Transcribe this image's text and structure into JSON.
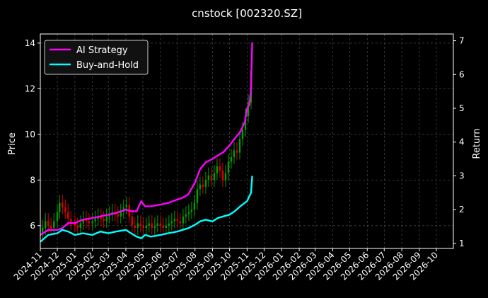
{
  "chart_data": {
    "type": "line",
    "title": "cnstock [002320.SZ]",
    "ylabel": "Price",
    "y2label": "Return",
    "ylim": [
      5.0,
      14.4
    ],
    "y2lim": [
      0.85,
      7.2
    ],
    "xlim": [
      "2024-11-01",
      "2026-10-31"
    ],
    "yticks": [
      6,
      8,
      10,
      12,
      14
    ],
    "y2ticks": [
      1,
      2,
      3,
      4,
      5,
      6,
      7
    ],
    "xticks": [
      "2024-11",
      "2024-12",
      "2025-01",
      "2025-02",
      "2025-03",
      "2025-04",
      "2025-05",
      "2025-06",
      "2025-07",
      "2025-08",
      "2025-09",
      "2025-10",
      "2025-11",
      "2025-12",
      "2026-01",
      "2026-02",
      "2026-03",
      "2026-04",
      "2026-05",
      "2026-06",
      "2026-07",
      "2026-08",
      "2026-09",
      "2026-10"
    ],
    "grid": true,
    "legend_position": "top-left",
    "colors": {
      "background": "#000000",
      "grid": "#555555",
      "up_candle": "#00a000",
      "down_candle": "#e00000",
      "ai_strategy": "#ff00ff",
      "buy_and_hold": "#00ffff"
    },
    "series": [
      {
        "name": "AI Strategy",
        "axis": "right",
        "x": [
          "2024-11-01",
          "2024-11-15",
          "2024-12-01",
          "2024-12-10",
          "2024-12-20",
          "2025-01-01",
          "2025-01-15",
          "2025-02-01",
          "2025-02-15",
          "2025-03-01",
          "2025-03-15",
          "2025-04-01",
          "2025-04-10",
          "2025-04-20",
          "2025-04-28",
          "2025-05-05",
          "2025-05-15",
          "2025-06-01",
          "2025-06-15",
          "2025-07-01",
          "2025-07-10",
          "2025-07-20",
          "2025-08-01",
          "2025-08-10",
          "2025-08-20",
          "2025-09-01",
          "2025-09-10",
          "2025-09-20",
          "2025-10-01",
          "2025-10-10",
          "2025-10-20",
          "2025-10-28",
          "2025-11-01",
          "2025-11-05",
          "2025-11-08",
          "2025-11-10"
        ],
        "values": [
          1.25,
          1.4,
          1.4,
          1.45,
          1.6,
          1.6,
          1.7,
          1.75,
          1.8,
          1.85,
          1.9,
          2.0,
          1.95,
          1.95,
          2.25,
          2.1,
          2.1,
          2.15,
          2.2,
          2.3,
          2.35,
          2.45,
          2.8,
          3.2,
          3.4,
          3.5,
          3.6,
          3.7,
          3.9,
          4.1,
          4.3,
          4.6,
          5.0,
          5.1,
          5.6,
          6.95
        ]
      },
      {
        "name": "Buy-and-Hold",
        "axis": "right",
        "x": [
          "2024-11-01",
          "2024-11-15",
          "2024-12-01",
          "2024-12-10",
          "2024-12-20",
          "2025-01-01",
          "2025-01-15",
          "2025-02-01",
          "2025-02-15",
          "2025-03-01",
          "2025-03-15",
          "2025-04-01",
          "2025-04-10",
          "2025-04-20",
          "2025-04-28",
          "2025-05-05",
          "2025-05-15",
          "2025-06-01",
          "2025-06-15",
          "2025-07-01",
          "2025-07-10",
          "2025-07-20",
          "2025-08-01",
          "2025-08-10",
          "2025-08-20",
          "2025-09-01",
          "2025-09-10",
          "2025-09-20",
          "2025-10-01",
          "2025-10-10",
          "2025-10-20",
          "2025-10-28",
          "2025-11-01",
          "2025-11-05",
          "2025-11-08",
          "2025-11-10"
        ],
        "values": [
          1.05,
          1.25,
          1.3,
          1.4,
          1.35,
          1.25,
          1.3,
          1.25,
          1.35,
          1.3,
          1.35,
          1.4,
          1.3,
          1.2,
          1.15,
          1.25,
          1.2,
          1.25,
          1.3,
          1.35,
          1.4,
          1.45,
          1.55,
          1.65,
          1.7,
          1.65,
          1.75,
          1.8,
          1.85,
          1.95,
          2.1,
          2.2,
          2.25,
          2.4,
          2.5,
          3.0
        ]
      }
    ],
    "candles": {
      "axis": "left",
      "note_hidden": true,
      "x": [
        "2024-11-05",
        "2024-11-10",
        "2024-11-15",
        "2024-11-20",
        "2024-11-25",
        "2024-12-01",
        "2024-12-05",
        "2024-12-10",
        "2024-12-15",
        "2024-12-20",
        "2024-12-25",
        "2025-01-01",
        "2025-01-06",
        "2025-01-11",
        "2025-01-16",
        "2025-01-21",
        "2025-01-26",
        "2025-02-01",
        "2025-02-06",
        "2025-02-11",
        "2025-02-16",
        "2025-02-21",
        "2025-02-26",
        "2025-03-03",
        "2025-03-08",
        "2025-03-13",
        "2025-03-18",
        "2025-03-23",
        "2025-03-28",
        "2025-04-02",
        "2025-04-07",
        "2025-04-12",
        "2025-04-17",
        "2025-04-22",
        "2025-04-27",
        "2025-05-02",
        "2025-05-07",
        "2025-05-12",
        "2025-05-17",
        "2025-05-22",
        "2025-05-27",
        "2025-06-01",
        "2025-06-06",
        "2025-06-11",
        "2025-06-16",
        "2025-06-21",
        "2025-06-26",
        "2025-07-01",
        "2025-07-06",
        "2025-07-11",
        "2025-07-16",
        "2025-07-21",
        "2025-07-26",
        "2025-07-31",
        "2025-08-05",
        "2025-08-10",
        "2025-08-15",
        "2025-08-20",
        "2025-08-25",
        "2025-08-30",
        "2025-09-04",
        "2025-09-09",
        "2025-09-14",
        "2025-09-19",
        "2025-09-24",
        "2025-09-29",
        "2025-10-04",
        "2025-10-09",
        "2025-10-14",
        "2025-10-19",
        "2025-10-24",
        "2025-10-29",
        "2025-11-03",
        "2025-11-08"
      ],
      "open": [
        5.6,
        5.9,
        6.2,
        6.0,
        5.9,
        6.2,
        6.6,
        7.0,
        6.8,
        6.6,
        6.3,
        6.1,
        6.0,
        5.9,
        6.1,
        6.3,
        6.2,
        6.1,
        6.2,
        6.3,
        6.4,
        6.3,
        6.2,
        6.4,
        6.5,
        6.6,
        6.5,
        6.4,
        6.6,
        6.8,
        6.9,
        6.4,
        6.0,
        5.9,
        6.1,
        6.0,
        5.9,
        6.0,
        6.1,
        5.9,
        6.0,
        6.1,
        6.0,
        5.9,
        6.0,
        6.1,
        6.2,
        6.3,
        6.2,
        6.1,
        6.4,
        6.5,
        6.6,
        6.7,
        7.0,
        7.6,
        7.8,
        7.7,
        8.0,
        8.2,
        8.0,
        8.3,
        8.6,
        8.4,
        8.0,
        8.3,
        8.8,
        9.0,
        9.3,
        9.2,
        9.8,
        10.2,
        10.8,
        11.4
      ],
      "close": [
        5.9,
        6.2,
        6.0,
        5.9,
        6.2,
        6.6,
        7.0,
        6.8,
        6.6,
        6.3,
        6.1,
        6.0,
        5.9,
        6.1,
        6.3,
        6.2,
        6.1,
        6.2,
        6.3,
        6.4,
        6.3,
        6.2,
        6.4,
        6.5,
        6.6,
        6.5,
        6.4,
        6.6,
        6.8,
        6.9,
        6.4,
        6.0,
        5.9,
        6.1,
        6.0,
        5.9,
        6.0,
        6.1,
        5.9,
        6.0,
        6.1,
        6.0,
        5.9,
        6.0,
        6.1,
        6.2,
        6.3,
        6.2,
        6.1,
        6.4,
        6.5,
        6.6,
        6.7,
        7.0,
        7.6,
        7.8,
        7.7,
        8.0,
        8.2,
        8.0,
        8.3,
        8.6,
        8.4,
        8.0,
        8.3,
        8.8,
        9.0,
        9.3,
        9.2,
        9.8,
        10.2,
        10.8,
        11.4,
        12.8
      ]
    }
  }
}
